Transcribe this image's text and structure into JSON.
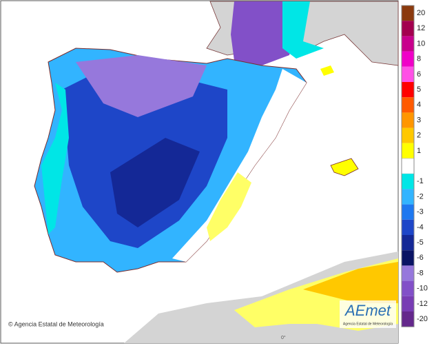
{
  "legend": {
    "items": [
      {
        "label": 20,
        "color": "#8b3a0e"
      },
      {
        "label": 12,
        "color": "#a3004f"
      },
      {
        "label": 10,
        "color": "#c8008c"
      },
      {
        "label": 8,
        "color": "#f000c8"
      },
      {
        "label": 6,
        "color": "#ff50e6"
      },
      {
        "label": 5,
        "color": "#ff0000"
      },
      {
        "label": 4,
        "color": "#ff5a00"
      },
      {
        "label": 3,
        "color": "#ff9600"
      },
      {
        "label": 2,
        "color": "#ffc800"
      },
      {
        "label": 1,
        "color": "#ffff00"
      },
      {
        "label": -1,
        "color": "#00e6e6"
      },
      {
        "label": -2,
        "color": "#32b4ff"
      },
      {
        "label": -3,
        "color": "#1e78f0"
      },
      {
        "label": -4,
        "color": "#1e46c8"
      },
      {
        "label": -5,
        "color": "#142896"
      },
      {
        "label": -6,
        "color": "#0a1464"
      },
      {
        "label": -8,
        "color": "#9678dc"
      },
      {
        "label": -10,
        "color": "#8250c8"
      },
      {
        "label": -12,
        "color": "#783cb4"
      },
      {
        "label": -20,
        "color": "#64288c"
      }
    ]
  },
  "credit": "© Agencia Estatal de Meteorología",
  "logo": {
    "name": "AEmet",
    "subtitle": "Agencia Estatal de Meteorología"
  },
  "meridian": "0°"
}
